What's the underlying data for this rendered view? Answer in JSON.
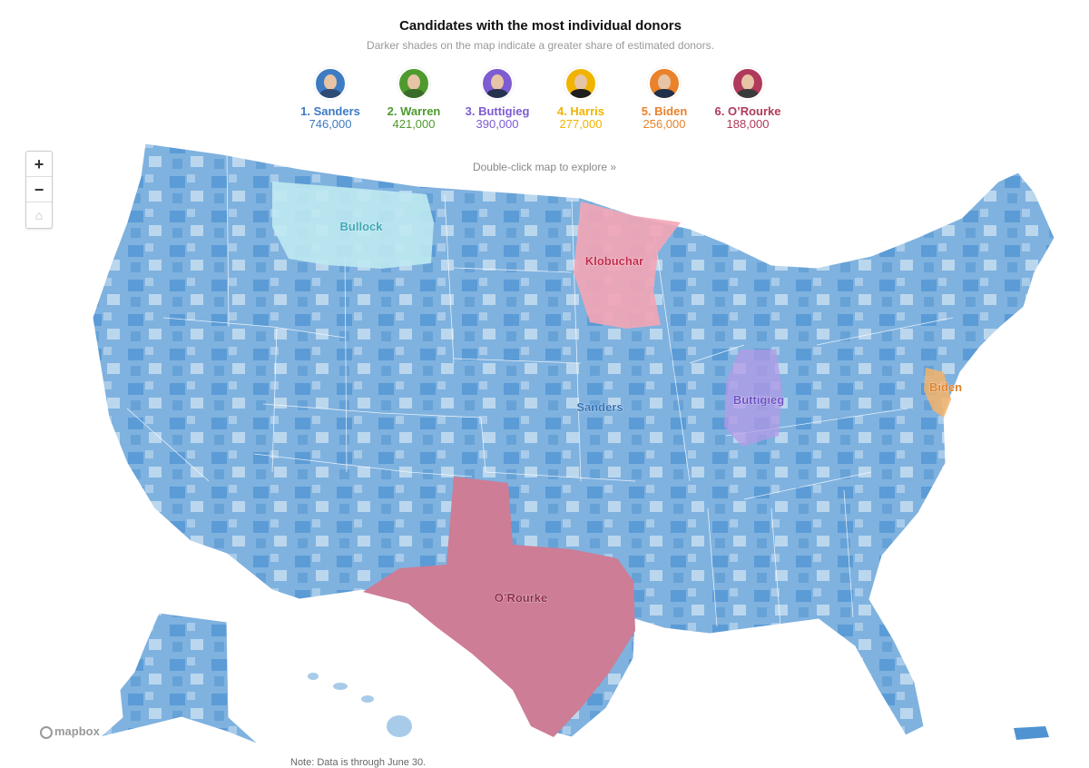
{
  "header": {
    "title": "Candidates with the most individual donors",
    "subtitle": "Darker shades on the map indicate a greater share of estimated donors."
  },
  "candidates": [
    {
      "label": "1. Sanders",
      "donors": "746,000",
      "color": "#3d7bc2",
      "shirt": "#2f4a73"
    },
    {
      "label": "2. Warren",
      "donors": "421,000",
      "color": "#4e9a2f",
      "shirt": "#3b6b2a"
    },
    {
      "label": "3. Buttigieg",
      "donors": "390,000",
      "color": "#7d5bd1",
      "shirt": "#27324d"
    },
    {
      "label": "4. Harris",
      "donors": "277,000",
      "color": "#f0b400",
      "shirt": "#1d1d1d"
    },
    {
      "label": "5. Biden",
      "donors": "256,000",
      "color": "#e9822b",
      "shirt": "#21304a"
    },
    {
      "label": "6. O’Rourke",
      "donors": "188,000",
      "color": "#b03a5b",
      "shirt": "#3a3a3a"
    }
  ],
  "controls": {
    "zoom_in": "+",
    "zoom_out": "−",
    "reset": "⌂",
    "hint": "Double-click map to explore »"
  },
  "map": {
    "base_color": "#7fb2df",
    "dark_color": "#4f93d2",
    "light_color": "#c6ddf1",
    "labels": {
      "bullock": "Bullock",
      "klobuchar": "Klobuchar",
      "sanders": "Sanders",
      "buttigieg": "Buttigieg",
      "biden": "Biden",
      "orourke": "O’Rourke"
    },
    "label_colors": {
      "bullock": "#3aa6b6",
      "klobuchar": "#c4274a",
      "sanders": "#2f6fb3",
      "buttigieg": "#6a4fc4",
      "biden": "#e0802a",
      "orourke": "#8b2744"
    },
    "region_colors": {
      "bullock": "#bfe9f1",
      "klobuchar": "#f4a5b5",
      "buttigieg": "#b39ae6",
      "biden": "#f5b36a",
      "orourke": "#cd7d95"
    }
  },
  "footer": {
    "attribution": "mapbox",
    "note": "Note: Data is through June 30."
  }
}
